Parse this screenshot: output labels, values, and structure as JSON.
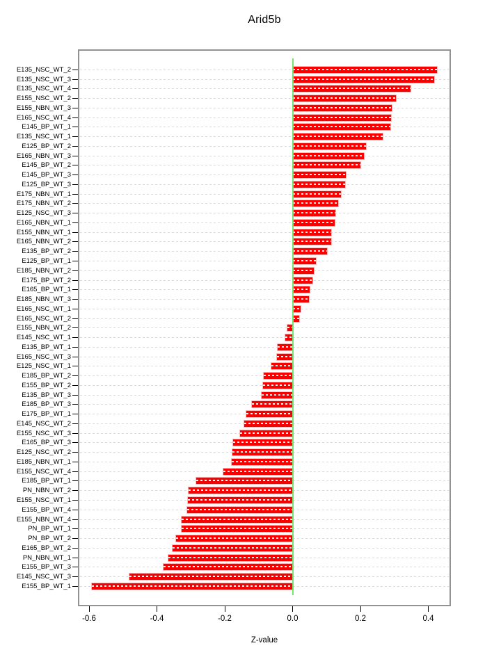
{
  "title": "Arid5b",
  "xlabel": "Z-value",
  "chart_data": {
    "type": "bar",
    "orientation": "horizontal",
    "title": "Arid5b",
    "xlabel": "Z-value",
    "ylabel": "",
    "xlim": [
      -0.633,
      0.467
    ],
    "x_ticks": [
      -0.6,
      -0.4,
      -0.2,
      0.0,
      0.2,
      0.4
    ],
    "x_tick_labels": [
      "-0.6",
      "-0.4",
      "-0.2",
      "0.0",
      "0.2",
      "0.4"
    ],
    "grid": true,
    "legend": false,
    "bar_color": "#fb0000",
    "zero_line_color": "#6fe86f",
    "grid_color": "#d9d9d9",
    "categories": [
      "E135_NSC_WT_2",
      "E135_NSC_WT_3",
      "E135_NSC_WT_4",
      "E155_NSC_WT_2",
      "E155_NBN_WT_3",
      "E165_NSC_WT_4",
      "E145_BP_WT_1",
      "E135_NSC_WT_1",
      "E125_BP_WT_2",
      "E165_NBN_WT_3",
      "E145_BP_WT_2",
      "E145_BP_WT_3",
      "E125_BP_WT_3",
      "E175_NBN_WT_1",
      "E175_NBN_WT_2",
      "E125_NSC_WT_3",
      "E165_NBN_WT_1",
      "E155_NBN_WT_1",
      "E165_NBN_WT_2",
      "E135_BP_WT_2",
      "E125_BP_WT_1",
      "E185_NBN_WT_2",
      "E175_BP_WT_2",
      "E165_BP_WT_1",
      "E185_NBN_WT_3",
      "E165_NSC_WT_1",
      "E165_NSC_WT_2",
      "E155_NBN_WT_2",
      "E145_NSC_WT_1",
      "E135_BP_WT_1",
      "E165_NSC_WT_3",
      "E125_NSC_WT_1",
      "E185_BP_WT_2",
      "E155_BP_WT_2",
      "E135_BP_WT_3",
      "E185_BP_WT_3",
      "E175_BP_WT_1",
      "E145_NSC_WT_2",
      "E155_NSC_WT_3",
      "E165_BP_WT_3",
      "E125_NSC_WT_2",
      "E185_NBN_WT_1",
      "E155_NSC_WT_4",
      "E185_BP_WT_1",
      "PN_NBN_WT_2",
      "E155_NSC_WT_1",
      "E155_BP_WT_4",
      "E155_NBN_WT_4",
      "PN_BP_WT_1",
      "PN_BP_WT_2",
      "E165_BP_WT_2",
      "PN_NBN_WT_1",
      "E155_BP_WT_3",
      "E145_NSC_WT_3",
      "E155_BP_WT_1"
    ],
    "values": [
      0.425,
      0.418,
      0.348,
      0.305,
      0.292,
      0.291,
      0.288,
      0.266,
      0.217,
      0.211,
      0.199,
      0.156,
      0.155,
      0.142,
      0.135,
      0.126,
      0.124,
      0.114,
      0.113,
      0.101,
      0.068,
      0.063,
      0.059,
      0.051,
      0.049,
      0.023,
      0.019,
      -0.015,
      -0.021,
      -0.044,
      -0.046,
      -0.062,
      -0.085,
      -0.088,
      -0.091,
      -0.12,
      -0.137,
      -0.142,
      -0.154,
      -0.176,
      -0.178,
      -0.18,
      -0.205,
      -0.285,
      -0.307,
      -0.308,
      -0.31,
      -0.327,
      -0.328,
      -0.343,
      -0.353,
      -0.366,
      -0.381,
      -0.481,
      -0.592
    ]
  }
}
